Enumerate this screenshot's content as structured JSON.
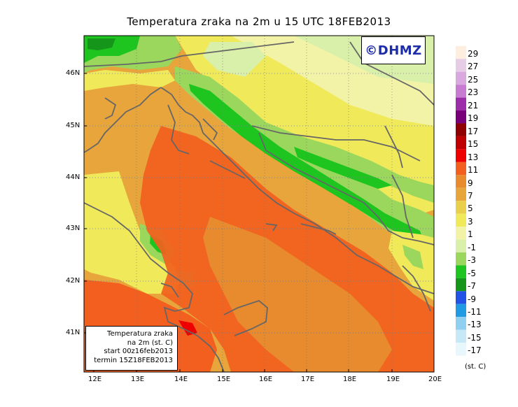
{
  "title": "Temperatura zraka na 2m u 15 UTC 18FEB2013",
  "logo_text": "©DHMZ",
  "info_box": {
    "line1": "Temperatura zraka",
    "line2": "na 2m (st. C)",
    "line3": "start 00z16feb2013",
    "line4": "termin 15Z18FEB2013"
  },
  "lat_ticks": [
    "46N",
    "45N",
    "44N",
    "43N",
    "42N",
    "41N"
  ],
  "lon_ticks": [
    "12E",
    "13E",
    "14E",
    "15E",
    "16E",
    "17E",
    "18E",
    "19E",
    "20E"
  ],
  "legend": {
    "unit": "(st. C)",
    "labels": [
      "29",
      "27",
      "25",
      "23",
      "21",
      "19",
      "17",
      "15",
      "13",
      "11",
      "9",
      "7",
      "5",
      "3",
      "1",
      "-1",
      "-3",
      "-5",
      "-7",
      "-9",
      "-11",
      "-13",
      "-15",
      "-17"
    ],
    "colors": [
      "#fdeee0",
      "#e6cce5",
      "#d9a8de",
      "#c77bd1",
      "#9c2ea9",
      "#7a007a",
      "#8f0000",
      "#bf0000",
      "#ee0000",
      "#f25f1e",
      "#e88a2e",
      "#e8a53c",
      "#e9cf4c",
      "#f0ea5a",
      "#f2f3a7",
      "#d8f0aa",
      "#9ad75c",
      "#1ec51e",
      "#15961a",
      "#2253e6",
      "#1f9ae3",
      "#8fcff0",
      "#c6e8f7",
      "#e8f7fb"
    ]
  }
}
